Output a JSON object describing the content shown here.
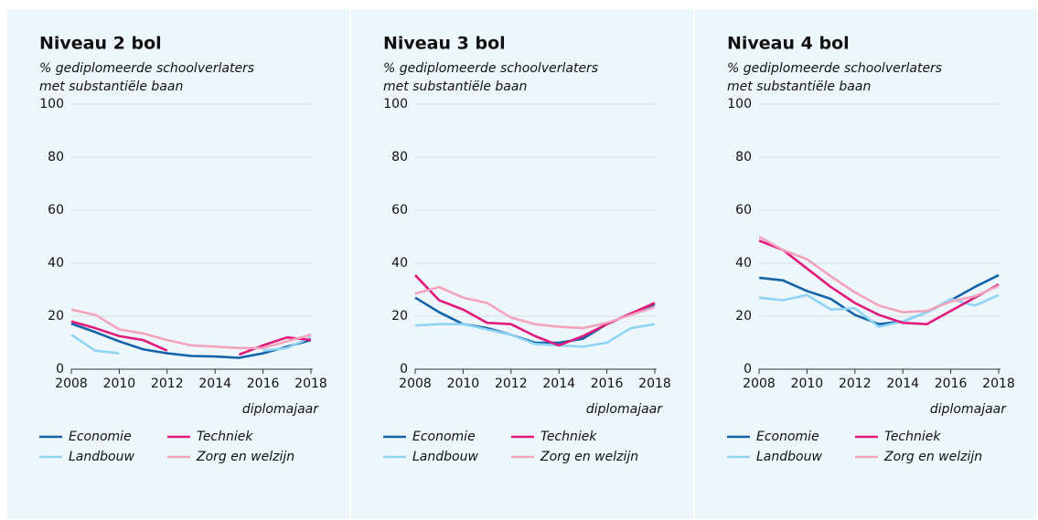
{
  "chart_data": [
    {
      "type": "line",
      "title": "Niveau 2 bol",
      "subtitle": [
        "% gediplomeerde schoolverlaters",
        "met substantiële baan"
      ],
      "x_label": "diplomajaar",
      "x": [
        2008,
        2009,
        2010,
        2011,
        2012,
        2013,
        2014,
        2015,
        2016,
        2017,
        2018
      ],
      "xlim": [
        2008,
        2018
      ],
      "xticks": [
        2008,
        2010,
        2012,
        2014,
        2016,
        2018
      ],
      "ylim": [
        0,
        100
      ],
      "yticks": [
        0,
        20,
        40,
        60,
        80,
        100
      ],
      "grid": true,
      "series": [
        {
          "name": "Economie",
          "color": "#1363a8",
          "values": [
            17.2,
            14,
            10.5,
            7.5,
            6,
            5,
            4.8,
            4.3,
            6,
            8.5,
            11
          ]
        },
        {
          "name": "Landbouw",
          "color": "#8fd3f5",
          "values": [
            13,
            7,
            6,
            null,
            null,
            null,
            null,
            null,
            7,
            8,
            12
          ]
        },
        {
          "name": "Techniek",
          "color": "#e0197a",
          "values": [
            18,
            15.5,
            12.5,
            11,
            7,
            null,
            null,
            5.5,
            9,
            12,
            11
          ]
        },
        {
          "name": "Zorg en welzijn",
          "color": "#f4a3bd",
          "values": [
            22.5,
            20.5,
            15,
            13.5,
            11,
            9,
            8.5,
            8,
            8,
            10.5,
            13
          ]
        }
      ]
    },
    {
      "type": "line",
      "title": "Niveau 3 bol",
      "subtitle": [
        "% gediplomeerde schoolverlaters",
        "met substantiële baan"
      ],
      "x_label": "diplomajaar",
      "x": [
        2008,
        2009,
        2010,
        2011,
        2012,
        2013,
        2014,
        2015,
        2016,
        2017,
        2018
      ],
      "xlim": [
        2008,
        2018
      ],
      "xticks": [
        2008,
        2010,
        2012,
        2014,
        2016,
        2018
      ],
      "ylim": [
        0,
        100
      ],
      "yticks": [
        0,
        20,
        40,
        60,
        80,
        100
      ],
      "grid": true,
      "series": [
        {
          "name": "Economie",
          "color": "#1363a8",
          "values": [
            27,
            21.5,
            17,
            15.5,
            13,
            10,
            10,
            11.5,
            17,
            21,
            24.5
          ]
        },
        {
          "name": "Landbouw",
          "color": "#8fd3f5",
          "values": [
            16.5,
            17,
            17,
            15,
            13,
            9.5,
            9,
            8.5,
            10,
            15.5,
            17
          ]
        },
        {
          "name": "Techniek",
          "color": "#e0197a",
          "values": [
            35.5,
            26,
            22.5,
            17.5,
            17,
            12.5,
            9,
            12.5,
            17,
            21,
            25
          ]
        },
        {
          "name": "Zorg en welzijn",
          "color": "#f4a3bd",
          "values": [
            28.5,
            31,
            27,
            25,
            19.5,
            17,
            16,
            15.5,
            17.5,
            20.5,
            23.5
          ]
        }
      ]
    },
    {
      "type": "line",
      "title": "Niveau 4 bol",
      "subtitle": [
        "% gediplomeerde schoolverlaters",
        "met substantiële baan"
      ],
      "x_label": "diplomajaar",
      "x": [
        2008,
        2009,
        2010,
        2011,
        2012,
        2013,
        2014,
        2015,
        2016,
        2017,
        2018
      ],
      "xlim": [
        2008,
        2018
      ],
      "xticks": [
        2008,
        2010,
        2012,
        2014,
        2016,
        2018
      ],
      "ylim": [
        0,
        100
      ],
      "yticks": [
        0,
        20,
        40,
        60,
        80,
        100
      ],
      "grid": true,
      "series": [
        {
          "name": "Economie",
          "color": "#1363a8",
          "values": [
            34.5,
            33.5,
            29.5,
            26.5,
            20.5,
            17,
            18,
            21.5,
            26,
            31,
            35.5
          ]
        },
        {
          "name": "Landbouw",
          "color": "#8fd3f5",
          "values": [
            27,
            26,
            28,
            22.5,
            23,
            16,
            18,
            21.5,
            26.5,
            24,
            28
          ]
        },
        {
          "name": "Techniek",
          "color": "#e0197a",
          "values": [
            48.5,
            45,
            38,
            31,
            25,
            20.5,
            17.5,
            17,
            22,
            27,
            32
          ]
        },
        {
          "name": "Zorg en welzijn",
          "color": "#f4a3bd",
          "values": [
            50,
            45,
            41.5,
            35,
            29,
            24,
            21.5,
            22,
            25.5,
            27.5,
            31.5
          ]
        }
      ]
    }
  ]
}
